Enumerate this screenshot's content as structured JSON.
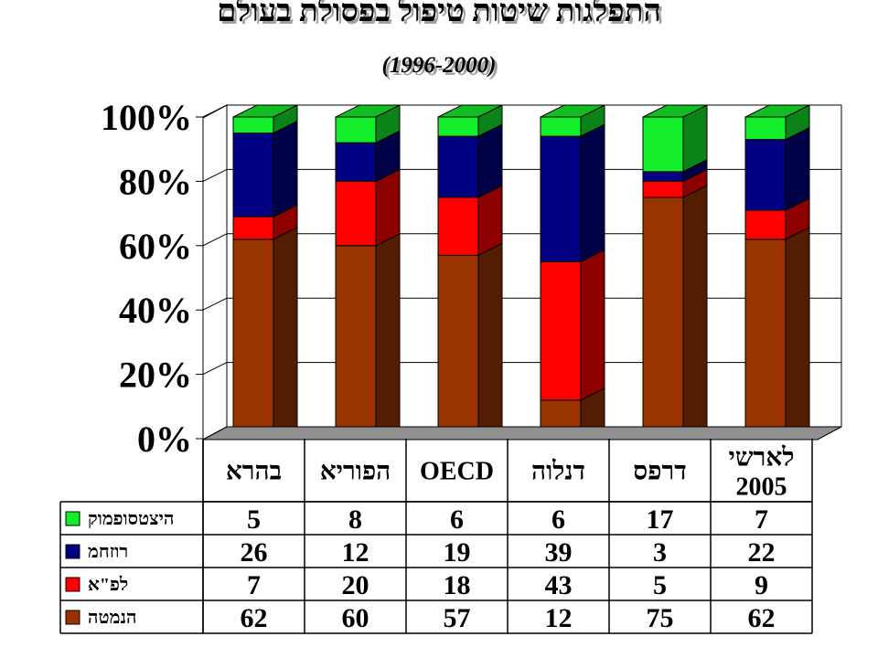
{
  "title": "התפלגות שיטות טיפול בפסולת בעולם",
  "subtitle": "(1996-2000)",
  "colors": {
    "compost": "#14ee2b",
    "burn": "#000080",
    "landfill": "#ff0000",
    "bury": "#993300"
  },
  "chart_data": {
    "type": "bar",
    "stacked": true,
    "percent": true,
    "categories": [
      "בהרא",
      "הפוריא",
      "OECD",
      "דנלוה",
      "דרפס",
      "לארשי 2005"
    ],
    "category_lines": [
      [
        "בהרא"
      ],
      [
        "הפוריא"
      ],
      [
        "OECD"
      ],
      [
        "דנלוה"
      ],
      [
        "דרפס"
      ],
      [
        "לארשי",
        "2005"
      ]
    ],
    "yticks": [
      "0%",
      "20%",
      "40%",
      "60%",
      "80%",
      "100%"
    ],
    "ylim": [
      0,
      100
    ],
    "series": [
      {
        "name": "הנמטה",
        "color": "#993300",
        "values": [
          62,
          60,
          57,
          12,
          75,
          62
        ]
      },
      {
        "name": "לפ\"א",
        "color": "#ff0000",
        "values": [
          7,
          20,
          18,
          43,
          5,
          9
        ]
      },
      {
        "name": "רוזחמ",
        "color": "#000080",
        "values": [
          26,
          12,
          19,
          39,
          3,
          22
        ]
      },
      {
        "name": "היצטסופמוק",
        "color": "#14ee2b",
        "values": [
          5,
          8,
          6,
          6,
          17,
          7
        ]
      }
    ],
    "table_row_order": [
      3,
      2,
      1,
      0
    ],
    "grid": true,
    "legend": "data-table-left"
  }
}
